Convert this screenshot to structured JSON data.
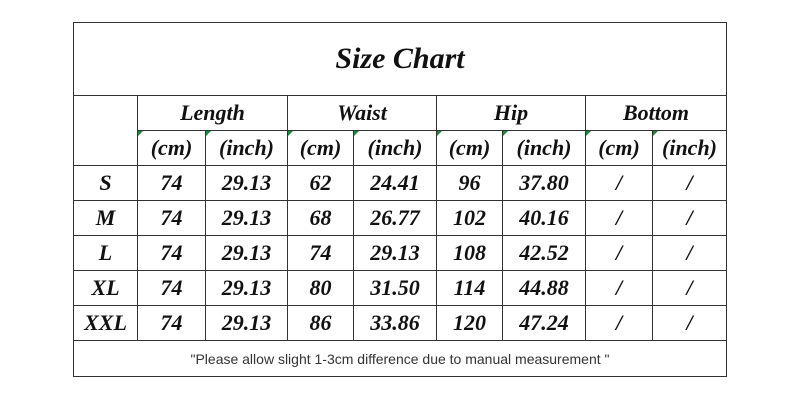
{
  "table": {
    "title": "Size Chart",
    "groups": [
      "Length",
      "Waist",
      "Hip",
      "Bottom"
    ],
    "units": [
      "(cm)",
      "(inch)",
      "(cm)",
      "(inch)",
      "(cm)",
      "(inch)",
      "(cm)",
      "(inch)"
    ],
    "rows": [
      [
        "S",
        "74",
        "29.13",
        "62",
        "24.41",
        "96",
        "37.80",
        "/",
        "/"
      ],
      [
        "M",
        "74",
        "29.13",
        "68",
        "26.77",
        "102",
        "40.16",
        "/",
        "/"
      ],
      [
        "L",
        "74",
        "29.13",
        "74",
        "29.13",
        "108",
        "42.52",
        "/",
        "/"
      ],
      [
        "XL",
        "74",
        "29.13",
        "80",
        "31.50",
        "114",
        "44.88",
        "/",
        "/"
      ],
      [
        "XXL",
        "74",
        "29.13",
        "86",
        "33.86",
        "120",
        "47.24",
        "/",
        "/"
      ]
    ],
    "note": "\"Please allow slight 1-3cm difference due to manual measurement \""
  }
}
